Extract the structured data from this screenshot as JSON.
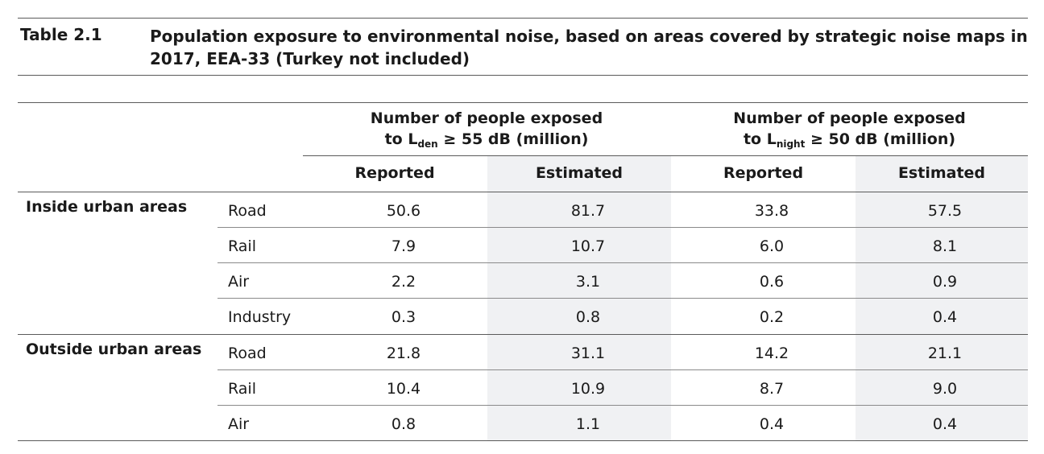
{
  "caption": {
    "label": "Table 2.1",
    "title": "Population exposure to environmental noise, based on areas covered by strategic noise maps in 2017, EEA-33 (Turkey not included)"
  },
  "header": {
    "group_lden": {
      "line1": "Number of people exposed",
      "prefix": "to L",
      "sub": "den",
      "suffix": " ≥ 55 dB (million)"
    },
    "group_lnight": {
      "line1": "Number of people exposed",
      "prefix": "to L",
      "sub": "night",
      "suffix": " ≥ 50 dB (million)"
    },
    "columns": [
      "Reported",
      "Estimated",
      "Reported",
      "Estimated"
    ]
  },
  "groups": [
    {
      "region": "Inside urban areas",
      "rows": [
        {
          "mode": "Road",
          "values": [
            "50.6",
            "81.7",
            "33.8",
            "57.5"
          ]
        },
        {
          "mode": "Rail",
          "values": [
            "7.9",
            "10.7",
            "6.0",
            "8.1"
          ]
        },
        {
          "mode": "Air",
          "values": [
            "2.2",
            "3.1",
            "0.6",
            "0.9"
          ]
        },
        {
          "mode": "Industry",
          "values": [
            "0.3",
            "0.8",
            "0.2",
            "0.4"
          ]
        }
      ]
    },
    {
      "region": "Outside urban areas",
      "rows": [
        {
          "mode": "Road",
          "values": [
            "21.8",
            "31.1",
            "14.2",
            "21.1"
          ]
        },
        {
          "mode": "Rail",
          "values": [
            "10.4",
            "10.9",
            "8.7",
            "9.0"
          ]
        },
        {
          "mode": "Air",
          "values": [
            "0.8",
            "1.1",
            "0.4",
            "0.4"
          ]
        }
      ]
    }
  ]
}
